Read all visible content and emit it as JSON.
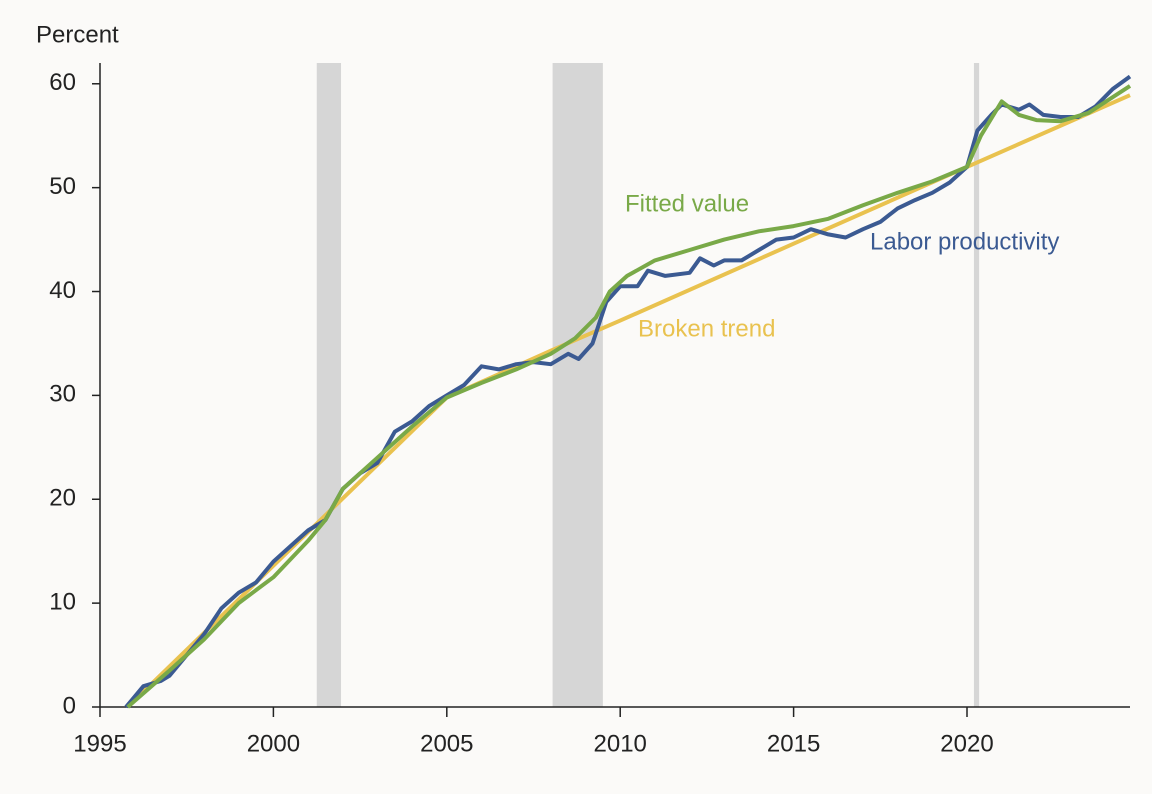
{
  "chart_data": {
    "type": "line",
    "y_label": "Percent",
    "xlim": [
      1995,
      2024.7
    ],
    "ylim": [
      0,
      62
    ],
    "xticks": [
      1995,
      2000,
      2005,
      2010,
      2015,
      2020
    ],
    "yticks": [
      0,
      10,
      20,
      30,
      40,
      50,
      60
    ],
    "shaded_ranges": [
      [
        2001.25,
        2001.95
      ],
      [
        2008.05,
        2009.5
      ],
      [
        2020.2,
        2020.35
      ]
    ],
    "shade_color": "#d6d6d6",
    "series": [
      {
        "name": "Labor productivity",
        "color": "#3b5a92",
        "x": [
          1995.75,
          1996.25,
          1996.75,
          1997,
          1997.5,
          1998,
          1998.5,
          1999,
          1999.5,
          2000,
          2000.5,
          2001,
          2001.5,
          2002,
          2002.5,
          2003,
          2003.5,
          2004,
          2004.5,
          2005,
          2005.5,
          2006,
          2006.5,
          2007,
          2007.5,
          2008,
          2008.5,
          2008.8,
          2009.2,
          2009.6,
          2010,
          2010.5,
          2010.8,
          2011.3,
          2012,
          2012.3,
          2012.7,
          2013,
          2013.5,
          2014,
          2014.5,
          2015,
          2015.5,
          2016,
          2016.5,
          2017,
          2017.5,
          2018,
          2018.5,
          2019,
          2019.5,
          2020,
          2020.3,
          2020.7,
          2021,
          2021.5,
          2021.8,
          2022.2,
          2022.7,
          2023.2,
          2023.7,
          2024.2,
          2024.7
        ],
        "values": [
          0,
          2,
          2.5,
          3,
          5,
          7,
          9.5,
          11,
          12,
          14,
          15.5,
          17,
          18,
          21,
          22.5,
          23.5,
          26.5,
          27.5,
          29,
          30,
          31,
          32.8,
          32.5,
          33,
          33.2,
          33,
          34,
          33.5,
          35,
          39,
          40.5,
          40.5,
          42,
          41.5,
          41.8,
          43.2,
          42.5,
          43,
          43,
          44,
          45,
          45.2,
          46,
          45.5,
          45.2,
          46,
          46.7,
          48,
          48.8,
          49.5,
          50.5,
          52,
          55.5,
          57,
          58,
          57.5,
          58,
          57,
          56.8,
          56.8,
          57.8,
          59.5,
          60.7
        ]
      },
      {
        "name": "Fitted value",
        "color": "#79a948",
        "x": [
          1995.8,
          1997,
          1998,
          1999,
          2000,
          2001,
          2001.5,
          2002,
          2003,
          2004,
          2005,
          2006,
          2007,
          2008,
          2008.7,
          2009.3,
          2009.7,
          2010.2,
          2011,
          2012,
          2013,
          2014,
          2015,
          2016,
          2017,
          2018,
          2019,
          2020,
          2020.4,
          2021,
          2021.5,
          2022,
          2022.7,
          2023.5,
          2024.7
        ],
        "values": [
          0,
          3.5,
          6.5,
          10,
          12.5,
          16,
          18,
          21,
          24,
          27,
          29.8,
          31.2,
          32.5,
          34,
          35.5,
          37.5,
          40,
          41.5,
          43,
          44,
          45,
          45.8,
          46.3,
          47,
          48.3,
          49.5,
          50.6,
          52,
          55,
          58.3,
          57,
          56.5,
          56.4,
          57.2,
          59.8
        ]
      },
      {
        "name": "Broken trend",
        "color": "#e9c24f",
        "x": [
          1995.8,
          2005,
          2008,
          2010,
          2015,
          2020,
          2024.7
        ],
        "values": [
          0,
          29.8,
          34.3,
          37.2,
          44.6,
          52,
          58.9
        ]
      }
    ]
  }
}
